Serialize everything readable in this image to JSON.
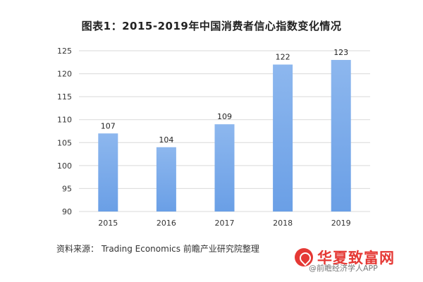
{
  "title": "图表1：2015-2019年中国消费者信心指数变化情况",
  "source": "资料来源： Trading Economics 前瞻产业研究院整理",
  "logo": {
    "text": "华夏致富网",
    "sub": "@前瞻经济学人APP"
  },
  "colors": {
    "bar_top": "#8db7ee",
    "bar_bottom": "#6a9fe6",
    "grid": "#d9d9d9",
    "axis_text": "#333333"
  },
  "chart_data": {
    "type": "bar",
    "categories": [
      "2015",
      "2016",
      "2017",
      "2018",
      "2019"
    ],
    "values": [
      107,
      104,
      109,
      122,
      123
    ],
    "title": "图表1：2015-2019年中国消费者信心指数变化情况",
    "xlabel": "",
    "ylabel": "",
    "ylim": [
      90,
      125
    ],
    "yticks": [
      90,
      95,
      100,
      105,
      110,
      115,
      120,
      125
    ],
    "grid": true,
    "data_labels": true
  }
}
